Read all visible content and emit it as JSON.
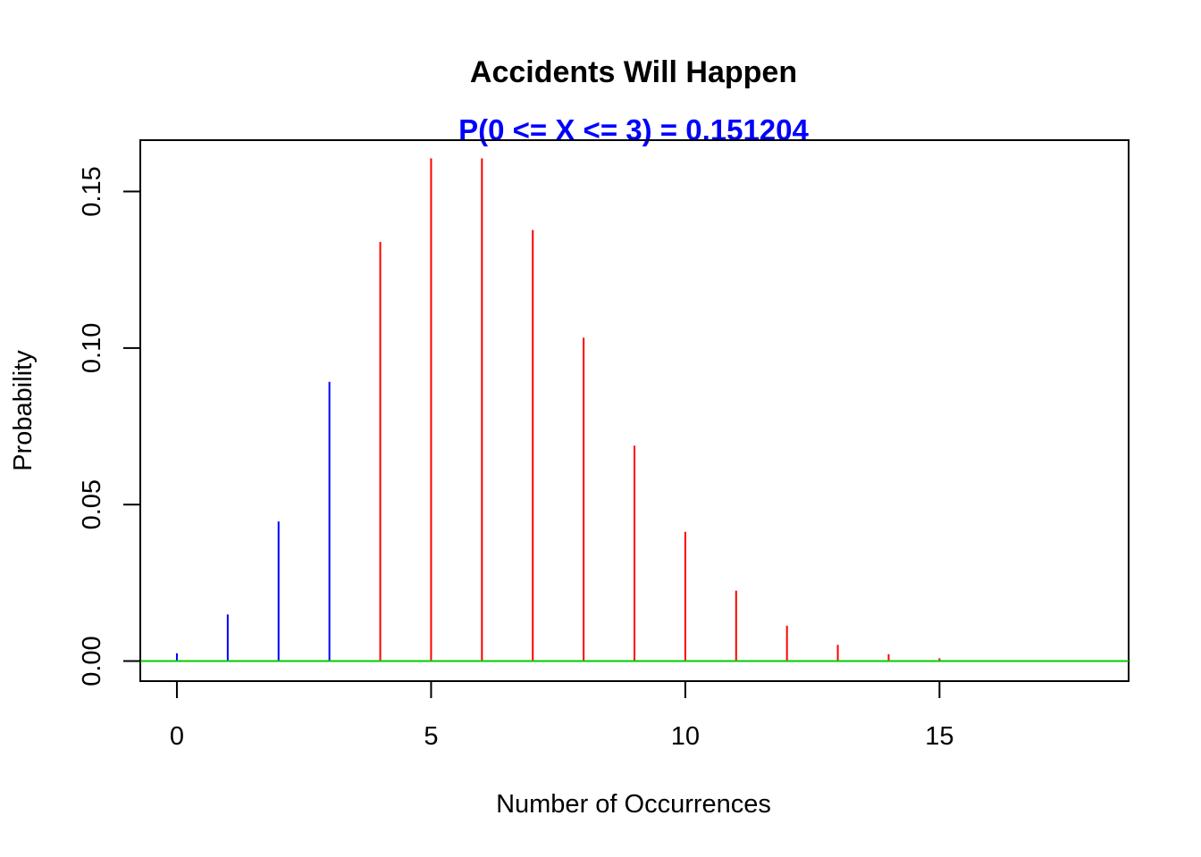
{
  "chart_data": {
    "type": "bar",
    "title": "Accidents Will Happen",
    "subtitle": "P(0 <= X <= 3) = 0.151204",
    "xlabel": "Number of Occurrences",
    "ylabel": "Probability",
    "xlim": [
      -0.72,
      18.72
    ],
    "ylim": [
      -0.0064,
      0.1664
    ],
    "x_ticks": [
      0,
      5,
      10,
      15
    ],
    "x_tick_labels": [
      "0",
      "5",
      "10",
      "15"
    ],
    "y_ticks": [
      0,
      0.05,
      0.1,
      0.15
    ],
    "y_tick_labels": [
      "0.00",
      "0.05",
      "0.10",
      "0.15"
    ],
    "grid": false,
    "baseline": 0,
    "series": [
      {
        "x": [
          0,
          1,
          2,
          3
        ],
        "values": [
          0.0025,
          0.0149,
          0.0446,
          0.0892
        ],
        "color": "#0000FF"
      },
      {
        "x": [
          4,
          5,
          6,
          7,
          8,
          9,
          10,
          11,
          12,
          13,
          14,
          15
        ],
        "values": [
          0.1339,
          0.1606,
          0.1606,
          0.1377,
          0.1033,
          0.0688,
          0.0413,
          0.0225,
          0.0113,
          0.0052,
          0.0022,
          0.0009
        ],
        "color": "#FF0000"
      }
    ],
    "colors": {
      "subtitle": "#0000FF",
      "baseline": "#00CD00",
      "axis": "#000000"
    }
  }
}
